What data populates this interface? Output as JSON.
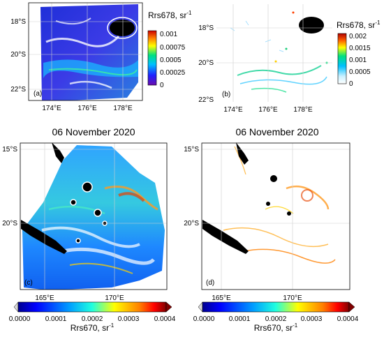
{
  "panels": [
    {
      "label": "(a)",
      "lat_ticks": [
        "18°S",
        "20°S",
        "22°S"
      ],
      "lon_ticks": [
        "174°E",
        "176°E",
        "178°E"
      ],
      "colorbar": {
        "title": "Rrs678, sr",
        "exponent": "-1",
        "ticks": [
          "0.001",
          "0.00075",
          "0.0005",
          "0.00025",
          "0"
        ]
      }
    },
    {
      "label": "(b)",
      "lat_ticks": [
        "18°S",
        "20°S",
        "22°S"
      ],
      "lon_ticks": [
        "174°E",
        "176°E",
        "178°E"
      ],
      "colorbar": {
        "title": "Rrs678, sr",
        "exponent": "-1",
        "ticks": [
          "0.002",
          "0.0015",
          "0.001",
          "0.0005",
          "0"
        ]
      }
    },
    {
      "label": "(c)",
      "date": "06 November 2020",
      "lat_ticks": [
        "15°S",
        "20°S"
      ],
      "lon_ticks": [
        "165°E",
        "170°E"
      ],
      "colorbar": {
        "title": "Rrs670, sr",
        "exponent": "-1",
        "ticks": [
          "0.0000",
          "0.0001",
          "0.0002",
          "0.0003",
          "0.0004"
        ]
      }
    },
    {
      "label": "(d)",
      "date": "06 November 2020",
      "lat_ticks": [
        "15°S",
        "20°S"
      ],
      "lon_ticks": [
        "165°E",
        "170°E"
      ],
      "colorbar": {
        "title": "Rrs670, sr",
        "exponent": "-1",
        "ticks": [
          "0.0000",
          "0.0001",
          "0.0002",
          "0.0003",
          "0.0004"
        ]
      }
    }
  ],
  "colormaps": {
    "rainbow_a": [
      "#6a0dad",
      "#2020ff",
      "#00c0ff",
      "#00e080",
      "#ffff00",
      "#ff8000",
      "#cc0000"
    ],
    "white_rainbow_b": [
      "#ffffff",
      "#c8f0ff",
      "#00c0ff",
      "#00e080",
      "#ffff00",
      "#ff6000",
      "#b00000"
    ],
    "jet_cd": [
      "#d8d8d8",
      "#00008f",
      "#0000ff",
      "#00a0ff",
      "#20ffdf",
      "#ffff00",
      "#ff8000",
      "#ff0000",
      "#800000"
    ]
  }
}
